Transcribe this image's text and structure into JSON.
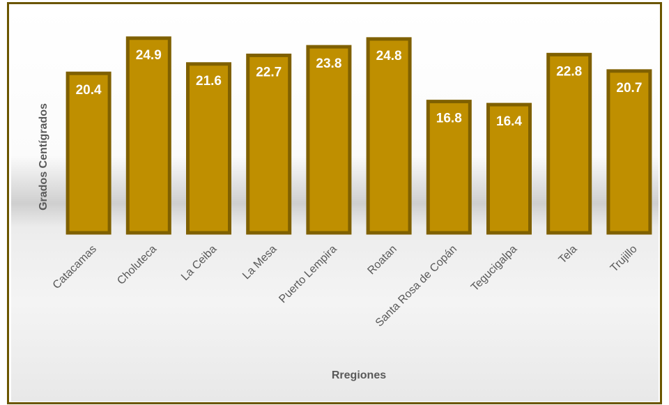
{
  "chart_data": {
    "type": "bar",
    "title": "",
    "xlabel": "Rregiones",
    "ylabel": "Grados Centígrados",
    "categories": [
      "Catacamas",
      "Choluteca",
      "La Ceiba",
      "La Mesa",
      "Puerto Lempira",
      "Roatan",
      "Santa Rosa de Copán",
      "Tegucigalpa",
      "Tela",
      "Trujillo"
    ],
    "values": [
      20.4,
      24.9,
      21.6,
      22.7,
      23.8,
      24.8,
      16.8,
      16.4,
      22.8,
      20.7
    ],
    "value_labels": [
      "20.4",
      "24.9",
      "21.6",
      "22.7",
      "23.8",
      "24.8",
      "16.8",
      "16.4",
      "22.8",
      "20.7"
    ],
    "ylim": [
      0,
      28
    ],
    "grid": false,
    "legend": "none",
    "colors": {
      "bar_fill": "#bf8f00",
      "bar_border": "#7f6000",
      "frame_border": "#6b5500",
      "label_text": "#ffffff",
      "axis_text": "#595959"
    }
  }
}
